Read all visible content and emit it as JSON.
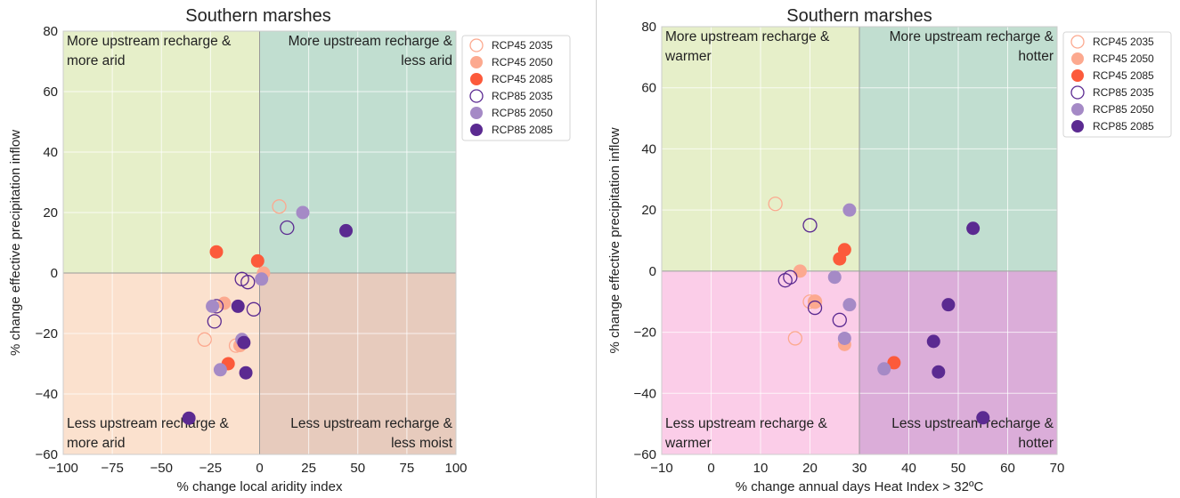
{
  "colors": {
    "rcp45": "#fc5a3b",
    "rcp45_light": "#fca98f",
    "rcp85": "#5b2a91",
    "rcp85_light": "#a58ac6",
    "bg_green_light": "#e6efc9",
    "bg_green_dark": "#c1ded0",
    "bg_peach": "#fbe1ce",
    "bg_tan": "#e7cbbd",
    "bg_pink": "#fbcde8",
    "bg_lilac": "#dbadd9"
  },
  "legend": [
    {
      "label": "RCP45 2035",
      "key": "r45_35",
      "scenario": "rcp45",
      "style": "hollow"
    },
    {
      "label": "RCP45 2050",
      "key": "r45_50",
      "scenario": "rcp45",
      "style": "light"
    },
    {
      "label": "RCP45 2085",
      "key": "r45_85",
      "scenario": "rcp45",
      "style": "full"
    },
    {
      "label": "RCP85 2035",
      "key": "r85_35",
      "scenario": "rcp85",
      "style": "hollow"
    },
    {
      "label": "RCP85 2050",
      "key": "r85_50",
      "scenario": "rcp85",
      "style": "light"
    },
    {
      "label": "RCP85 2085",
      "key": "r85_85",
      "scenario": "rcp85",
      "style": "full"
    }
  ],
  "chart_data": [
    {
      "type": "scatter",
      "title": "Southern marshes",
      "xlabel": "% change local aridity index",
      "ylabel": "% change effective precipitation inflow",
      "xlim": [
        -100,
        100
      ],
      "ylim": [
        -60,
        80
      ],
      "xticks": [
        "−100",
        "−75",
        "−50",
        "−25",
        "0",
        "25",
        "50",
        "75",
        "100"
      ],
      "yticks": [
        "−60",
        "−40",
        "−20",
        "0",
        "20",
        "40",
        "60",
        "80"
      ],
      "grid": true,
      "legend_position": "top-right",
      "quadrants": {
        "top_left": [
          "More upstream recharge &",
          "more arid"
        ],
        "top_right": [
          "More upstream recharge &",
          "less arid"
        ],
        "bottom_left": [
          "Less upstream recharge &",
          "more arid"
        ],
        "bottom_right": [
          "Less upstream recharge &",
          "less moist"
        ]
      },
      "series": [
        {
          "name": "RCP45 2035",
          "key": "r45_35",
          "x": [
            10,
            -28,
            -12
          ],
          "y": [
            22,
            -22,
            -24
          ]
        },
        {
          "name": "RCP45 2050",
          "key": "r45_50",
          "x": [
            -18,
            2,
            -10
          ],
          "y": [
            -10,
            0,
            -24
          ]
        },
        {
          "name": "RCP45 2085",
          "key": "r45_85",
          "x": [
            -22,
            -1,
            -16
          ],
          "y": [
            7,
            4,
            -30
          ]
        },
        {
          "name": "RCP85 2035",
          "key": "r85_35",
          "x": [
            14,
            -9,
            -6,
            -23,
            -3,
            -22
          ],
          "y": [
            15,
            -2,
            -3,
            -16,
            -12,
            -11
          ]
        },
        {
          "name": "RCP85 2050",
          "key": "r85_50",
          "x": [
            22,
            1,
            -9,
            -20,
            -24
          ],
          "y": [
            20,
            -2,
            -22,
            -32,
            -11
          ]
        },
        {
          "name": "RCP85 2085",
          "key": "r85_85",
          "x": [
            44,
            -36,
            -11,
            -8,
            -7
          ],
          "y": [
            14,
            -48,
            -11,
            -23,
            -33
          ]
        }
      ]
    },
    {
      "type": "scatter",
      "title": "Southern marshes",
      "xlabel": "% change annual days Heat Index > 32ºC",
      "ylabel": "% change effective precipitation inflow",
      "xlim": [
        -10,
        70
      ],
      "ylim": [
        -60,
        80
      ],
      "xticks": [
        "−10",
        "0",
        "10",
        "20",
        "30",
        "40",
        "50",
        "60",
        "70"
      ],
      "yticks": [
        "−60",
        "−40",
        "−20",
        "0",
        "20",
        "40",
        "60",
        "80"
      ],
      "grid": true,
      "legend_position": "top-right",
      "quadrants": {
        "top_left": [
          "More upstream recharge &",
          "warmer"
        ],
        "top_right": [
          "More upstream recharge &",
          "hotter"
        ],
        "bottom_left": [
          "Less upstream recharge &",
          "warmer"
        ],
        "bottom_right": [
          "Less upstream recharge &",
          "hotter"
        ]
      },
      "series": [
        {
          "name": "RCP45 2035",
          "key": "r45_35",
          "x": [
            13,
            17,
            20,
            21
          ],
          "y": [
            22,
            -22,
            -10,
            -10
          ]
        },
        {
          "name": "RCP45 2050",
          "key": "r45_50",
          "x": [
            18,
            21,
            27
          ],
          "y": [
            0,
            -10,
            -24
          ]
        },
        {
          "name": "RCP45 2085",
          "key": "r45_85",
          "x": [
            27,
            26,
            37
          ],
          "y": [
            7,
            4,
            -30
          ]
        },
        {
          "name": "RCP85 2035",
          "key": "r85_35",
          "x": [
            20,
            15,
            16,
            21,
            26
          ],
          "y": [
            15,
            -3,
            -2,
            -12,
            -16
          ]
        },
        {
          "name": "RCP85 2050",
          "key": "r85_50",
          "x": [
            28,
            25,
            28,
            27,
            35
          ],
          "y": [
            20,
            -2,
            -11,
            -22,
            -32
          ]
        },
        {
          "name": "RCP85 2085",
          "key": "r85_85",
          "x": [
            53,
            48,
            45,
            46,
            55
          ],
          "y": [
            14,
            -11,
            -23,
            -33,
            -48
          ]
        }
      ]
    }
  ]
}
